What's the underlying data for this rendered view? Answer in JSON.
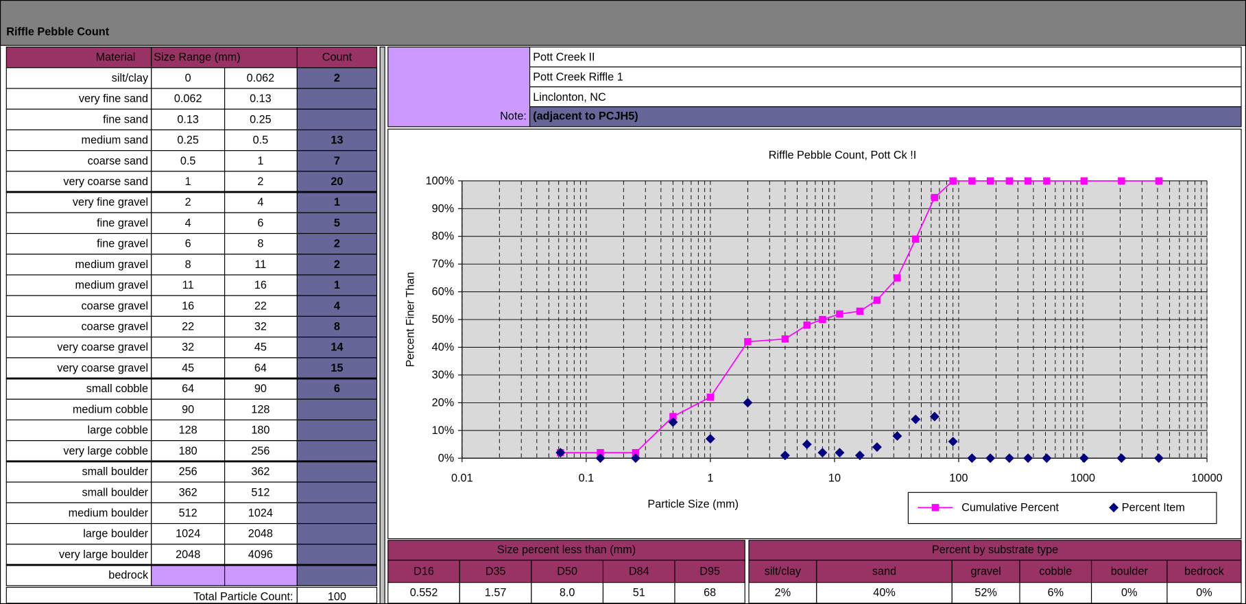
{
  "header": {
    "title": "Riffle Pebble Count"
  },
  "table": {
    "columns": [
      "Material",
      "Size Range (mm)",
      "Count"
    ],
    "rows": [
      [
        "silt/clay",
        "0",
        "0.062",
        "2"
      ],
      [
        "very fine sand",
        "0.062",
        "0.13",
        null
      ],
      [
        "fine sand",
        "0.13",
        "0.25",
        null
      ],
      [
        "medium sand",
        "0.25",
        "0.5",
        "13"
      ],
      [
        "coarse sand",
        "0.5",
        "1",
        "7"
      ],
      [
        "very coarse sand",
        "1",
        "2",
        "20"
      ],
      [
        "very fine gravel",
        "2",
        "4",
        "1"
      ],
      [
        "fine gravel",
        "4",
        "6",
        "5"
      ],
      [
        "fine gravel",
        "6",
        "8",
        "2"
      ],
      [
        "medium gravel",
        "8",
        "11",
        "2"
      ],
      [
        "medium gravel",
        "11",
        "16",
        "1"
      ],
      [
        "coarse gravel",
        "16",
        "22",
        "4"
      ],
      [
        "coarse gravel",
        "22",
        "32",
        "8"
      ],
      [
        "very coarse gravel",
        "32",
        "45",
        "14"
      ],
      [
        "very coarse gravel",
        "45",
        "64",
        "15"
      ],
      [
        "small cobble",
        "64",
        "90",
        "6"
      ],
      [
        "medium cobble",
        "90",
        "128",
        null
      ],
      [
        "large cobble",
        "128",
        "180",
        null
      ],
      [
        "very large cobble",
        "180",
        "256",
        null
      ],
      [
        "small boulder",
        "256",
        "362",
        null
      ],
      [
        "small boulder",
        "362",
        "512",
        null
      ],
      [
        "medium boulder",
        "512",
        "1024",
        null
      ],
      [
        "large boulder",
        "1024",
        "2048",
        null
      ],
      [
        "very large boulder",
        "2048",
        "4096",
        null
      ],
      [
        "bedrock",
        null,
        null,
        null
      ]
    ],
    "total_label": "Total Particle Count:",
    "total": "100"
  },
  "info": {
    "lines": [
      "Pott Creek II",
      "Pott Creek Riffle 1",
      "Linclonton, NC"
    ],
    "note_label": "Note:",
    "note": "(adjacent to PCJH5)"
  },
  "chart_data": {
    "type": "line",
    "title": "Riffle Pebble Count,  Pott Ck !I",
    "xlabel": "Particle Size (mm)",
    "ylabel": "Percent Finer Than",
    "x": [
      0.062,
      0.13,
      0.25,
      0.5,
      1,
      2,
      4,
      6,
      8,
      11,
      16,
      22,
      32,
      45,
      64,
      90,
      128,
      180,
      256,
      362,
      512,
      1024,
      2048,
      4096
    ],
    "series": [
      {
        "name": "Cumulative Percent",
        "color": "#ff00ff",
        "marker": "square",
        "line": true,
        "values": [
          2,
          2,
          2,
          15,
          22,
          42,
          43,
          48,
          50,
          52,
          53,
          57,
          65,
          79,
          94,
          100,
          100,
          100,
          100,
          100,
          100,
          100,
          100,
          100
        ]
      },
      {
        "name": "Percent Item",
        "color": "#000080",
        "marker": "diamond",
        "line": false,
        "values": [
          2,
          0,
          0,
          13,
          7,
          20,
          1,
          5,
          2,
          2,
          1,
          4,
          8,
          14,
          15,
          6,
          0,
          0,
          0,
          0,
          0,
          0,
          0,
          0
        ]
      }
    ],
    "xscale": "log",
    "xlim": [
      0.01,
      10000
    ],
    "xticks": [
      0.01,
      0.1,
      1,
      10,
      100,
      1000,
      10000
    ],
    "ylim": [
      0,
      100
    ],
    "yticks": [
      {
        "value": 0,
        "label": "0%"
      },
      {
        "value": 10,
        "label": "10%"
      },
      {
        "value": 20,
        "label": "20%"
      },
      {
        "value": 30,
        "label": "30%"
      },
      {
        "value": 40,
        "label": "40%"
      },
      {
        "value": 50,
        "label": "50%"
      },
      {
        "value": 60,
        "label": "60%"
      },
      {
        "value": 70,
        "label": "70%"
      },
      {
        "value": 80,
        "label": "80%"
      },
      {
        "value": 90,
        "label": "90%"
      },
      {
        "value": 100,
        "label": "100%"
      }
    ],
    "grid": true,
    "minor_grid": true,
    "legend": "lower right"
  },
  "summary": {
    "size_title": "Size percent less than (mm)",
    "size_headers": [
      "D16",
      "D35",
      "D50",
      "D84",
      "D95"
    ],
    "size_values": [
      "0.552",
      "1.57",
      "8.0",
      "51",
      "68"
    ],
    "substrate_title": "Percent by substrate type",
    "substrate_headers": [
      "silt/clay",
      "sand",
      "gravel",
      "cobble",
      "boulder",
      "bedrock"
    ],
    "substrate_values": [
      "2%",
      "40%",
      "52%",
      "6%",
      "0%",
      "0%"
    ]
  }
}
